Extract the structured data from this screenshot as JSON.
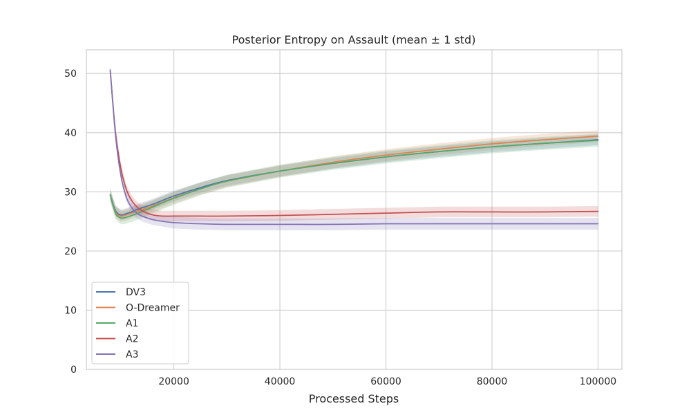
{
  "chart_data": {
    "type": "line",
    "title": "Posterior Entropy on Assault (mean ± 1 std)",
    "xlabel": "Processed Steps",
    "ylabel": "",
    "xlim": [
      3500,
      104500
    ],
    "ylim": [
      0,
      54
    ],
    "xticks": [
      20000,
      40000,
      60000,
      80000,
      100000
    ],
    "yticks": [
      0,
      10,
      20,
      30,
      40,
      50
    ],
    "grid": true,
    "legend_position": "lower-left",
    "x": [
      8000,
      9000,
      10000,
      11000,
      12000,
      13000,
      14000,
      16000,
      18000,
      20000,
      25000,
      30000,
      40000,
      50000,
      60000,
      70000,
      80000,
      90000,
      100000
    ],
    "series": [
      {
        "name": "DV3",
        "color": "#4c72b0",
        "values": [
          29.5,
          26.8,
          26.1,
          26.3,
          26.6,
          27.0,
          27.3,
          27.9,
          28.6,
          29.3,
          30.7,
          31.9,
          33.5,
          34.8,
          35.9,
          36.8,
          37.6,
          38.2,
          38.8
        ],
        "std": [
          0.9,
          0.9,
          0.9,
          0.9,
          0.9,
          0.9,
          0.9,
          0.9,
          0.9,
          0.9,
          0.9,
          0.9,
          0.9,
          0.9,
          0.9,
          0.9,
          0.9,
          0.9,
          0.9
        ]
      },
      {
        "name": "O-Dreamer",
        "color": "#dd8452",
        "values": [
          29.4,
          26.6,
          25.9,
          26.1,
          26.4,
          26.7,
          27.0,
          27.6,
          28.3,
          29.0,
          30.5,
          31.8,
          33.5,
          35.0,
          36.2,
          37.2,
          38.1,
          38.8,
          39.4
        ],
        "std": [
          1.0,
          1.0,
          1.0,
          1.0,
          1.0,
          1.0,
          1.0,
          1.0,
          1.0,
          1.0,
          1.0,
          1.0,
          1.0,
          1.0,
          1.0,
          1.0,
          1.0,
          1.0,
          1.0
        ]
      },
      {
        "name": "A1",
        "color": "#55a868",
        "values": [
          29.5,
          26.4,
          25.6,
          25.7,
          26.0,
          26.3,
          26.7,
          27.4,
          28.2,
          28.9,
          30.5,
          31.8,
          33.5,
          34.8,
          35.9,
          36.8,
          37.6,
          38.2,
          38.7
        ],
        "std": [
          1.1,
          1.1,
          1.1,
          1.1,
          1.1,
          1.1,
          1.1,
          1.1,
          1.1,
          1.1,
          1.1,
          1.1,
          1.1,
          1.1,
          1.1,
          1.1,
          1.1,
          1.1,
          1.1
        ]
      },
      {
        "name": "A2",
        "color": "#c44e52",
        "values": [
          50.5,
          40.0,
          34.0,
          30.5,
          28.6,
          27.5,
          26.8,
          26.1,
          25.9,
          25.9,
          25.9,
          25.9,
          26.0,
          26.2,
          26.4,
          26.6,
          26.6,
          26.6,
          26.7
        ],
        "std": [
          0.8,
          0.8,
          0.8,
          0.8,
          0.9,
          0.9,
          0.9,
          0.9,
          0.9,
          0.9,
          0.9,
          0.9,
          0.9,
          0.9,
          0.9,
          0.9,
          0.9,
          0.9,
          0.9
        ]
      },
      {
        "name": "A3",
        "color": "#8172b3",
        "values": [
          50.6,
          39.5,
          32.8,
          29.2,
          27.4,
          26.4,
          25.9,
          25.3,
          25.0,
          24.8,
          24.6,
          24.5,
          24.5,
          24.5,
          24.6,
          24.6,
          24.6,
          24.6,
          24.6
        ],
        "std": [
          0.8,
          0.8,
          0.8,
          0.8,
          0.9,
          0.9,
          0.9,
          0.9,
          0.9,
          1.0,
          1.0,
          1.0,
          1.0,
          1.0,
          1.0,
          1.0,
          1.0,
          1.0,
          1.0
        ]
      }
    ]
  }
}
